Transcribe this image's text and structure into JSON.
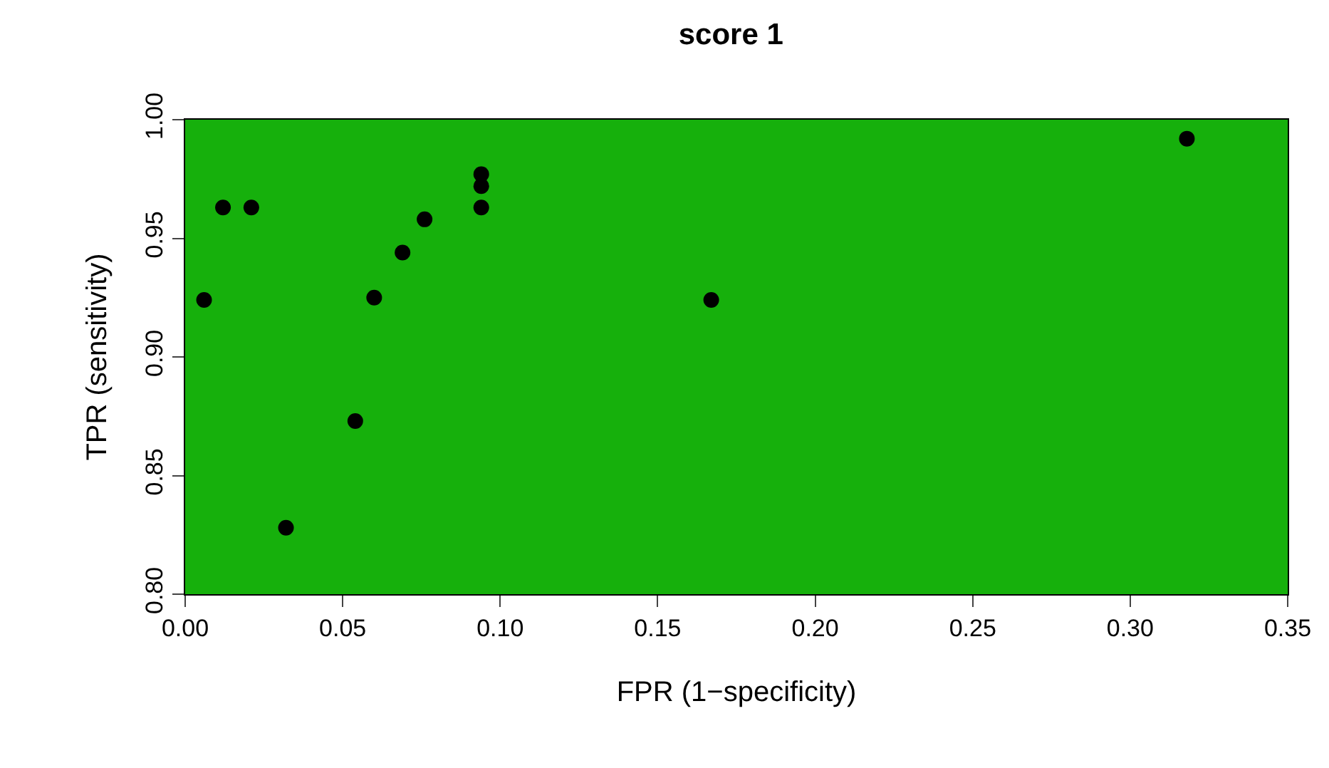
{
  "chart_data": {
    "type": "scatter",
    "title": "score 1",
    "xlabel": "FPR (1−specificity)",
    "ylabel": "TPR (sensitivity)",
    "x": [
      0.012,
      0.021,
      0.006,
      0.06,
      0.076,
      0.069,
      0.094,
      0.094,
      0.094,
      0.054,
      0.032,
      0.167,
      0.318
    ],
    "values": [
      0.963,
      0.963,
      0.924,
      0.925,
      0.958,
      0.944,
      0.977,
      0.972,
      0.963,
      0.873,
      0.828,
      0.924,
      0.992
    ],
    "color": "#000000",
    "marker": "circle",
    "xlim": [
      0,
      0.35
    ],
    "xticks": [
      {
        "value": 0,
        "label": "0.00"
      },
      0.05,
      {
        "value": 0.1,
        "label": "0.10"
      },
      0.15,
      {
        "value": 0.2,
        "label": "0.20"
      },
      0.25,
      {
        "value": 0.3,
        "label": "0.30"
      },
      0.35
    ],
    "ylim": [
      0.8,
      1.0
    ],
    "yticks": [
      {
        "value": 0.8,
        "label": "0.80"
      },
      0.85,
      {
        "value": 0.9,
        "label": "0.90"
      },
      0.95,
      {
        "value": 1.0,
        "label": "1.00"
      }
    ],
    "grid": false
  }
}
